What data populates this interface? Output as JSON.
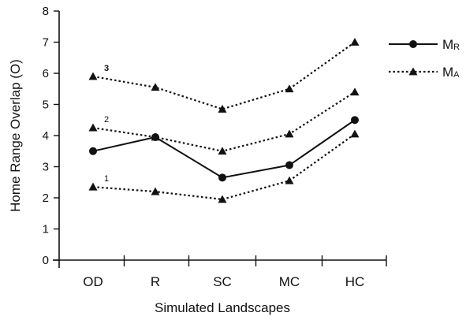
{
  "chart_data": {
    "type": "line",
    "title": "",
    "xlabel": "Simulated Landscapes",
    "ylabel": "Home Range Overlap (O)",
    "categories": [
      "OD",
      "R",
      "SC",
      "MC",
      "HC"
    ],
    "ylim": [
      0,
      8
    ],
    "yticks": [
      "0",
      "1",
      "2",
      "3",
      "4",
      "5",
      "6",
      "7",
      "8"
    ],
    "grid": false,
    "legend_position": "top-right",
    "legend": [
      {
        "main": "M",
        "sub": "R",
        "marker": "circle",
        "style": "solid"
      },
      {
        "main": "M",
        "sub": "A",
        "marker": "triangle",
        "style": "dotted"
      }
    ],
    "series": [
      {
        "legend_index": 0,
        "label": "",
        "marker": "circle",
        "style": "solid",
        "values": [
          3.5,
          3.95,
          2.65,
          3.05,
          4.5
        ]
      },
      {
        "legend_index": 1,
        "label": "1",
        "marker": "triangle",
        "style": "dotted",
        "values": [
          2.35,
          2.2,
          1.95,
          2.55,
          4.05
        ]
      },
      {
        "legend_index": 1,
        "label": "2",
        "marker": "triangle",
        "style": "dotted",
        "values": [
          4.25,
          3.95,
          3.5,
          4.05,
          5.4
        ]
      },
      {
        "legend_index": 1,
        "label": "3",
        "marker": "triangle",
        "style": "dotted",
        "values": [
          5.9,
          5.55,
          4.85,
          5.5,
          7.0
        ]
      }
    ]
  }
}
